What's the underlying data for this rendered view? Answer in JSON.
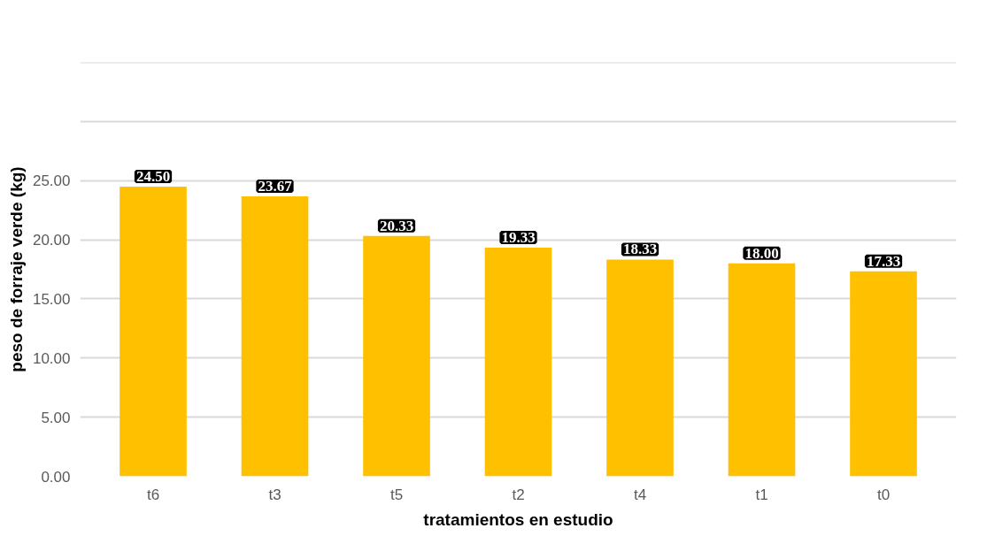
{
  "chart_data": {
    "type": "bar",
    "xlabel": "tratamientos en estudio",
    "ylabel": "peso de forraje verde (kg)",
    "categories": [
      "t6",
      "t3",
      "t5",
      "t2",
      "t4",
      "t1",
      "t0"
    ],
    "values": [
      24.5,
      23.67,
      20.33,
      19.33,
      18.33,
      18.0,
      17.33
    ],
    "value_labels": [
      "24.50",
      "23.67",
      "20.33",
      "19.33",
      "18.33",
      "18.00",
      "17.33"
    ],
    "color": "#ffc000",
    "ylim": [
      0,
      35
    ],
    "yticks": [
      {
        "value": 0,
        "label": "0.00"
      },
      {
        "value": 5,
        "label": "5.00"
      },
      {
        "value": 10,
        "label": "10.00"
      },
      {
        "value": 15,
        "label": "15.00"
      },
      {
        "value": 20,
        "label": "20.00"
      },
      {
        "value": 25,
        "label": "25.00"
      },
      {
        "value": 30,
        "label": null
      },
      {
        "value": 35,
        "label": null
      }
    ],
    "grid": "y"
  }
}
